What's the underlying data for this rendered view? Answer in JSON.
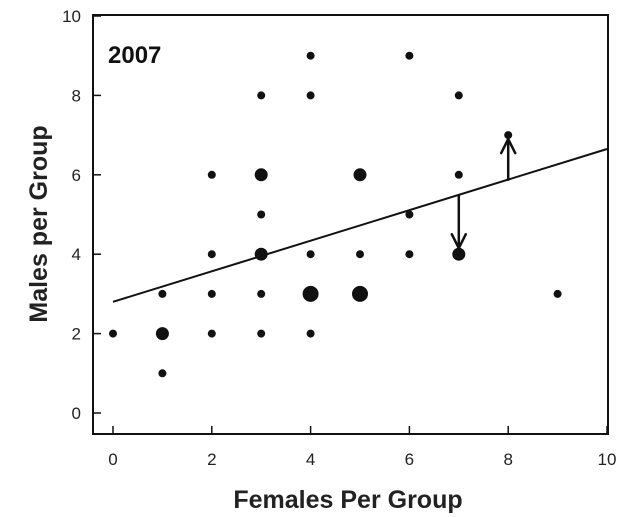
{
  "chart_data": {
    "type": "scatter",
    "title": "2007",
    "xlabel": "Females Per Group",
    "ylabel": "Males per Group",
    "xlim": [
      0,
      10
    ],
    "ylim": [
      0,
      10
    ],
    "xticks": [
      0,
      2,
      4,
      6,
      8,
      10
    ],
    "yticks": [
      0,
      2,
      4,
      6,
      8,
      10
    ],
    "grid": false,
    "points": [
      {
        "x": 0,
        "y": 2,
        "size": "small"
      },
      {
        "x": 1,
        "y": 1,
        "size": "small"
      },
      {
        "x": 1,
        "y": 2,
        "size": "medium"
      },
      {
        "x": 1,
        "y": 3,
        "size": "small"
      },
      {
        "x": 2,
        "y": 2,
        "size": "small"
      },
      {
        "x": 2,
        "y": 3,
        "size": "small"
      },
      {
        "x": 2,
        "y": 4,
        "size": "small"
      },
      {
        "x": 2,
        "y": 6,
        "size": "small"
      },
      {
        "x": 3,
        "y": 2,
        "size": "small"
      },
      {
        "x": 3,
        "y": 3,
        "size": "small"
      },
      {
        "x": 3,
        "y": 4,
        "size": "medium"
      },
      {
        "x": 3,
        "y": 5,
        "size": "small"
      },
      {
        "x": 3,
        "y": 6,
        "size": "medium"
      },
      {
        "x": 3,
        "y": 8,
        "size": "small"
      },
      {
        "x": 4,
        "y": 2,
        "size": "small"
      },
      {
        "x": 4,
        "y": 3,
        "size": "large"
      },
      {
        "x": 4,
        "y": 4,
        "size": "small"
      },
      {
        "x": 4,
        "y": 8,
        "size": "small"
      },
      {
        "x": 4,
        "y": 9,
        "size": "small"
      },
      {
        "x": 5,
        "y": 3,
        "size": "large"
      },
      {
        "x": 5,
        "y": 4,
        "size": "small"
      },
      {
        "x": 5,
        "y": 6,
        "size": "medium"
      },
      {
        "x": 6,
        "y": 4,
        "size": "small"
      },
      {
        "x": 6,
        "y": 5,
        "size": "small"
      },
      {
        "x": 6,
        "y": 9,
        "size": "small"
      },
      {
        "x": 7,
        "y": 4,
        "size": "medium"
      },
      {
        "x": 7,
        "y": 6,
        "size": "small"
      },
      {
        "x": 7,
        "y": 8,
        "size": "small"
      },
      {
        "x": 8,
        "y": 7,
        "size": "small"
      },
      {
        "x": 9,
        "y": 3,
        "size": "small"
      }
    ],
    "regression_line": {
      "x": [
        0,
        10
      ],
      "y": [
        2.8,
        6.65
      ]
    },
    "annotations": [
      {
        "type": "arrow",
        "x": 7,
        "y_from": 5.5,
        "y_to": 4.15,
        "direction": "down"
      },
      {
        "type": "arrow",
        "x": 8,
        "y_from": 5.85,
        "y_to": 6.9,
        "direction": "up"
      }
    ],
    "colors": {
      "marker": "#111111",
      "line": "#111111",
      "axis": "#111111"
    }
  }
}
